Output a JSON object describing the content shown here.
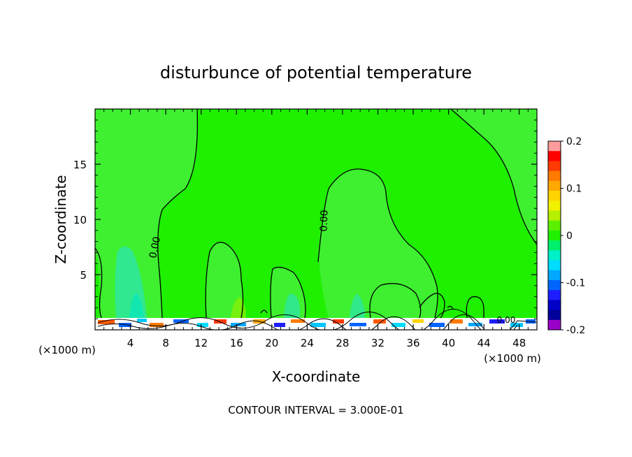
{
  "chart_data": {
    "type": "heatmap",
    "title": "disturbunce of potential temperature",
    "xlabel": "X-coordinate",
    "ylabel": "Z-coordinate",
    "x_unit": "(×1000 m)",
    "footer": "CONTOUR INTERVAL = 3.000E-01",
    "xlim": [
      0,
      50
    ],
    "ylim": [
      0,
      20
    ],
    "x_ticks": [
      4,
      8,
      12,
      16,
      20,
      24,
      28,
      32,
      36,
      40,
      44,
      48
    ],
    "y_ticks": [
      5,
      10,
      15
    ],
    "grid": false,
    "contour_label": "0.00",
    "colorbar": {
      "ticks": [
        0.2,
        0.1,
        0,
        -0.1,
        -0.2
      ],
      "tick_labels": [
        "0.2",
        "0.1",
        "0",
        "-0.1",
        "-0.2"
      ],
      "colors": [
        "#ff9c9c",
        "#ff0000",
        "#ff3a00",
        "#ff7a00",
        "#ffa800",
        "#ffd400",
        "#f2f200",
        "#b4f000",
        "#5cf000",
        "#1ef000",
        "#00f06e",
        "#00f0c8",
        "#00dcff",
        "#00a8ff",
        "#0064ff",
        "#1e1eff",
        "#0000c8",
        "#00009a",
        "#9a00c8"
      ],
      "background_value": 0
    }
  }
}
